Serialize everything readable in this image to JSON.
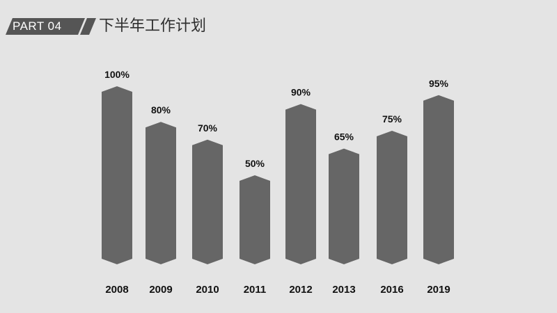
{
  "header": {
    "part_label": "PART 04",
    "title": "下半年工作计划"
  },
  "colors": {
    "bar": "#666666",
    "tag": "#555555",
    "text": "#111111",
    "background": "#e4e4e4"
  },
  "chart_data": {
    "type": "bar",
    "title": "",
    "xlabel": "",
    "ylabel": "",
    "categories": [
      "2008",
      "2009",
      "2010",
      "2011",
      "2012",
      "2013",
      "2016",
      "2019"
    ],
    "values": [
      100,
      80,
      70,
      50,
      90,
      65,
      75,
      95
    ],
    "value_labels": [
      "100%",
      "80%",
      "70%",
      "50%",
      "90%",
      "65%",
      "75%",
      "95%"
    ],
    "ylim": [
      0,
      100
    ],
    "grid": false,
    "legend": "none"
  }
}
